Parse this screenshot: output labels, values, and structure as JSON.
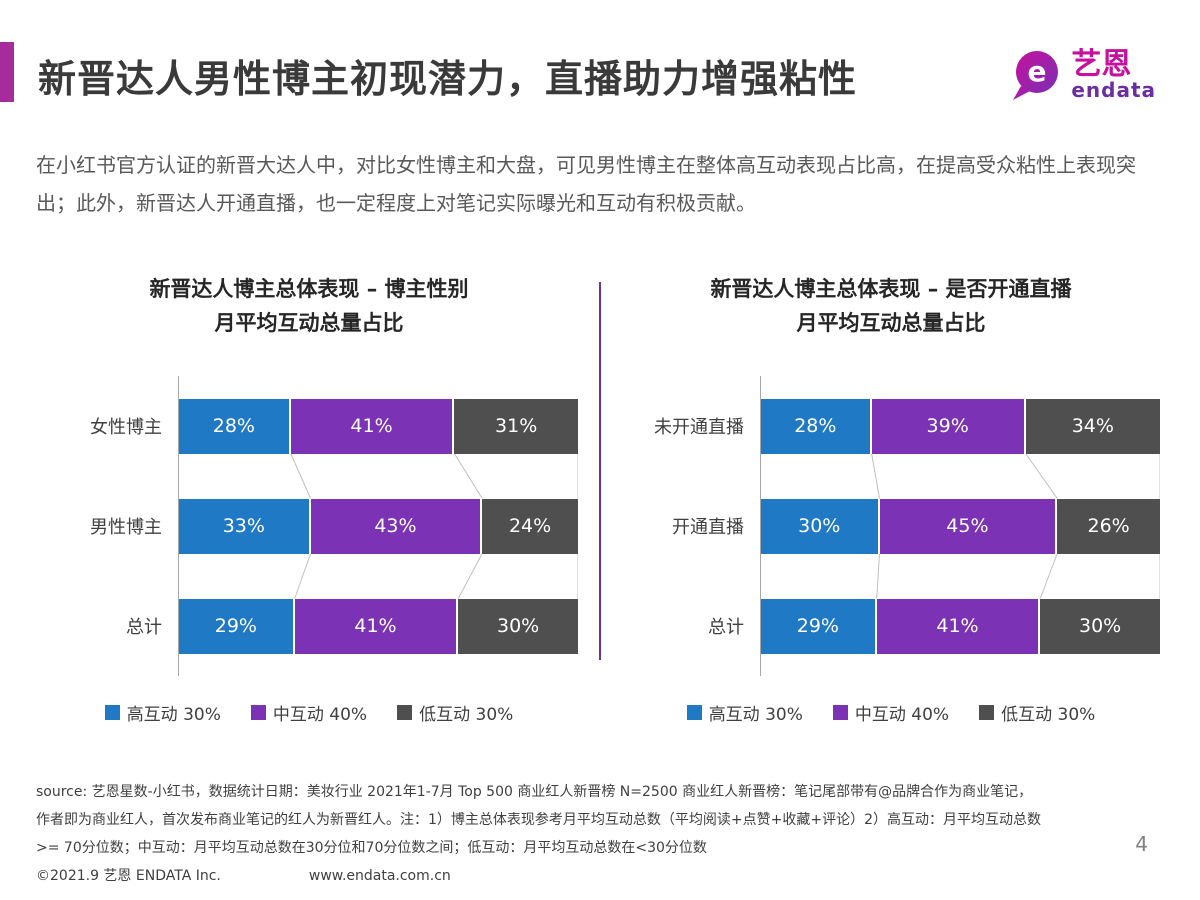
{
  "page": {
    "title": "新晋达人男性博主初现潜力，直播助力增强粘性",
    "page_number": "4",
    "accent_color": "#A62C9B",
    "divider_color": "#7030A0"
  },
  "logo": {
    "cn": "艺恩",
    "en": "endata",
    "icon": "endata-e-bubble-icon",
    "color_magenta": "#C5119E",
    "color_purple": "#6A2EA0"
  },
  "intro": "在小红书官方认证的新晋大达人中，对比女性博主和大盘，可见男性博主在整体高互动表现占比高，在提高受众粘性上表现突出；此外，新晋达人开通直播，也一定程度上对笔记实际曝光和互动有积极贡献。",
  "chart_data": [
    {
      "type": "bar",
      "orientation": "horizontal",
      "stacked": true,
      "title_line1": "新晋达人博主总体表现 – 博主性别",
      "title_line2": "月平均互动总量占比",
      "categories": [
        "女性博主",
        "男性博主",
        "总计"
      ],
      "series": [
        {
          "name": "高互动 30%",
          "color": "#2079C5",
          "values": [
            28,
            33,
            29
          ]
        },
        {
          "name": "中互动 40%",
          "color": "#7B32B4",
          "values": [
            41,
            43,
            41
          ]
        },
        {
          "name": "低互动 30%",
          "color": "#4F4F4F",
          "values": [
            31,
            24,
            30
          ]
        }
      ],
      "value_suffix": "%",
      "xlim": [
        0,
        100
      ],
      "grid": false,
      "legend_position": "bottom"
    },
    {
      "type": "bar",
      "orientation": "horizontal",
      "stacked": true,
      "title_line1": "新晋达人博主总体表现 – 是否开通直播",
      "title_line2": "月平均互动总量占比",
      "categories": [
        "未开通直播",
        "开通直播",
        "总计"
      ],
      "series": [
        {
          "name": "高互动 30%",
          "color": "#2079C5",
          "values": [
            28,
            30,
            29
          ]
        },
        {
          "name": "中互动 40%",
          "color": "#7B32B4",
          "values": [
            39,
            45,
            41
          ]
        },
        {
          "name": "低互动 30%",
          "color": "#4F4F4F",
          "values": [
            34,
            26,
            30
          ]
        }
      ],
      "value_suffix": "%",
      "xlim": [
        0,
        100
      ],
      "grid": false,
      "legend_position": "bottom"
    }
  ],
  "footer": {
    "source_lines": [
      "source: 艺恩星数-小红书，数据统计日期：美妆行业 2021年1-7月 Top 500 商业红人新晋榜 N=2500  商业红人新晋榜：笔记尾部带有@品牌合作为商业笔记，",
      "作者即为商业红人，首次发布商业笔记的红人为新晋红人。注：1）博主总体表现参考月平均互动总数（平均阅读+点赞+收藏+评论）2）高互动：月平均互动总数",
      ">= 70分位数；中互动：月平均互动总数在30分位和70分位数之间；低互动：月平均互动总数在<30分位数"
    ],
    "copyright": "©2021.9 艺恩 ENDATA Inc.",
    "website": "www.endata.com.cn"
  }
}
